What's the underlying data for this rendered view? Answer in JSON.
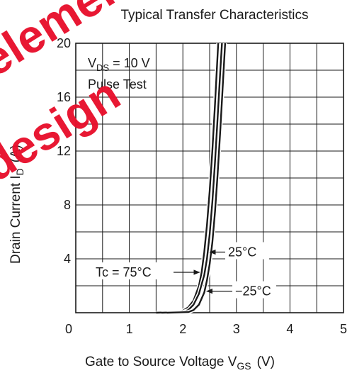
{
  "watermark": {
    "text_line1": "element",
    "text_line2": "design",
    "color": "#e8112d"
  },
  "chart_data": {
    "type": "line",
    "title": "Typical Transfer Characteristics",
    "xlabel": {
      "main": "Gate to Source Voltage  V",
      "sub": "GS",
      "unit": "(V)"
    },
    "ylabel": {
      "main": "Drain Current  I",
      "sub": "D",
      "unit": "(A)"
    },
    "xlim": [
      0,
      5
    ],
    "ylim": [
      0,
      20
    ],
    "x_ticks": [
      0,
      1,
      2,
      3,
      4,
      5
    ],
    "y_ticks": [
      4,
      8,
      12,
      16,
      20
    ],
    "y_tick_labels": [
      "4",
      "8",
      "12",
      "16",
      "20"
    ],
    "grid": true,
    "x_minor_divisions": 2,
    "y_minor_divisions": 2,
    "conditions": {
      "line1_main": "V",
      "line1_sub": "DS",
      "line1_rest": " = 10 V",
      "line2": "Pulse Test"
    },
    "series": [
      {
        "name": "Tc = 75°C",
        "points": [
          [
            1.5,
            0.0
          ],
          [
            1.9,
            0.05
          ],
          [
            2.0,
            0.15
          ],
          [
            2.1,
            0.4
          ],
          [
            2.2,
            0.9
          ],
          [
            2.3,
            2.0
          ],
          [
            2.35,
            3.0
          ],
          [
            2.4,
            4.5
          ],
          [
            2.45,
            6.5
          ],
          [
            2.5,
            9.0
          ],
          [
            2.55,
            12.0
          ],
          [
            2.6,
            15.5
          ],
          [
            2.64,
            18.5
          ],
          [
            2.66,
            20.0
          ]
        ]
      },
      {
        "name": "25°C",
        "points": [
          [
            1.6,
            0.0
          ],
          [
            2.0,
            0.05
          ],
          [
            2.1,
            0.2
          ],
          [
            2.2,
            0.6
          ],
          [
            2.3,
            1.4
          ],
          [
            2.4,
            2.8
          ],
          [
            2.45,
            4.0
          ],
          [
            2.5,
            5.8
          ],
          [
            2.55,
            8.2
          ],
          [
            2.6,
            11.2
          ],
          [
            2.65,
            14.5
          ],
          [
            2.7,
            18.0
          ],
          [
            2.73,
            20.0
          ]
        ]
      },
      {
        "name": "−25°C",
        "points": [
          [
            1.7,
            0.0
          ],
          [
            2.1,
            0.05
          ],
          [
            2.2,
            0.2
          ],
          [
            2.3,
            0.6
          ],
          [
            2.4,
            1.5
          ],
          [
            2.45,
            2.4
          ],
          [
            2.5,
            3.6
          ],
          [
            2.55,
            5.2
          ],
          [
            2.6,
            7.5
          ],
          [
            2.65,
            10.3
          ],
          [
            2.7,
            13.6
          ],
          [
            2.75,
            17.2
          ],
          [
            2.79,
            20.0
          ]
        ]
      }
    ],
    "annotations": [
      {
        "label": "25°C",
        "arrow_to_series": 1,
        "at_y": 4.5
      },
      {
        "label": "Tc = 75°C",
        "arrow_to_series": 0,
        "at_y": 3.0
      },
      {
        "label": "−25°C",
        "arrow_to_series": 2,
        "at_y": 1.6
      }
    ]
  }
}
